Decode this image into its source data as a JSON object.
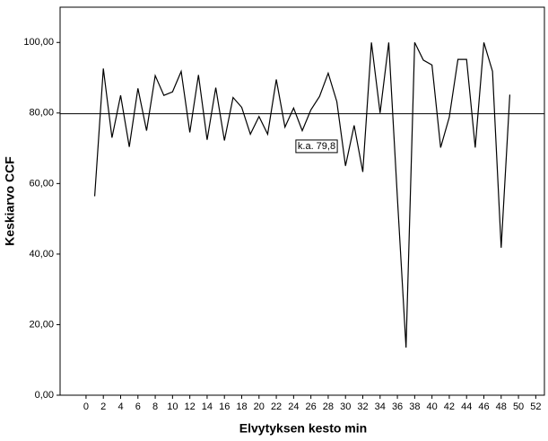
{
  "chart_data": {
    "type": "line",
    "x_label": "Elvytyksen kesto min",
    "y_label": "Keskiarvo CCF",
    "x": [
      1,
      2,
      3,
      4,
      5,
      6,
      7,
      8,
      9,
      10,
      11,
      12,
      13,
      14,
      15,
      16,
      17,
      18,
      19,
      20,
      21,
      22,
      23,
      24,
      25,
      26,
      27,
      28,
      29,
      30,
      31,
      32,
      33,
      34,
      35,
      36,
      37,
      38,
      39,
      40,
      41,
      42,
      43,
      44,
      45,
      46,
      47,
      48,
      49
    ],
    "series": [
      {
        "color": "#000000",
        "values": [
          56.4,
          92.6,
          73,
          85,
          70.4,
          87,
          75,
          90.6,
          85,
          86,
          91.8,
          74.5,
          90.8,
          72.4,
          87.2,
          72.2,
          84.4,
          81.6,
          74,
          79,
          74,
          89.5,
          76,
          81.4,
          75,
          80.9,
          84.7,
          91.3,
          83.2,
          65,
          76.5,
          63.3,
          100,
          80,
          100,
          56,
          13.5,
          100,
          95,
          93.6,
          70.2,
          78.8,
          95.2,
          95.2,
          70.2,
          100,
          91.8,
          41.8,
          85.2
        ]
      }
    ],
    "reference_line": {
      "value": 79.8,
      "label": "k.a. 79,8"
    },
    "xlim": [
      -3,
      53
    ],
    "xticks": [
      0,
      2,
      4,
      6,
      8,
      10,
      12,
      14,
      16,
      18,
      20,
      22,
      24,
      26,
      28,
      30,
      32,
      34,
      36,
      38,
      40,
      42,
      44,
      46,
      48,
      50,
      52
    ],
    "ylim": [
      0,
      110
    ],
    "yticks": [
      {
        "value": 0,
        "label": "0,00"
      },
      {
        "value": 20,
        "label": "20,00"
      },
      {
        "value": 40,
        "label": "40,00"
      },
      {
        "value": 60,
        "label": "60,00"
      },
      {
        "value": 80,
        "label": "80,00"
      },
      {
        "value": 100,
        "label": "100,00"
      }
    ]
  }
}
